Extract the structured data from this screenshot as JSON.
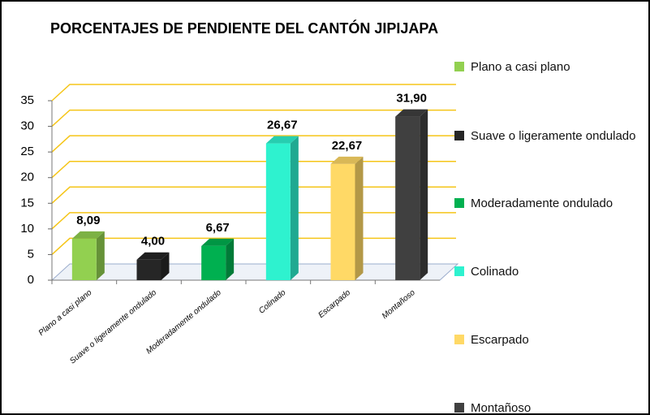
{
  "chart_data": {
    "type": "bar3d",
    "title": "PORCENTAJES DE PENDIENTE DEL CANTÓN JIPIJAPA",
    "categories": [
      "Plano a casi plano",
      "Suave o ligeramente ondulado",
      "Moderadamente ondulado",
      "Colinado",
      "Escarpado",
      "Montañoso"
    ],
    "values": [
      8.09,
      4.0,
      6.67,
      26.67,
      22.67,
      31.9
    ],
    "value_labels": [
      "8,09",
      "4,00",
      "6,67",
      "26,67",
      "22,67",
      "31,90"
    ],
    "colors": [
      "#92d050",
      "#262626",
      "#00b050",
      "#2ef2cf",
      "#ffd966",
      "#404040"
    ],
    "ylim": [
      0,
      35
    ],
    "yticks": [
      0,
      5,
      10,
      15,
      20,
      25,
      30,
      35
    ],
    "grid": true,
    "legend": "right"
  }
}
